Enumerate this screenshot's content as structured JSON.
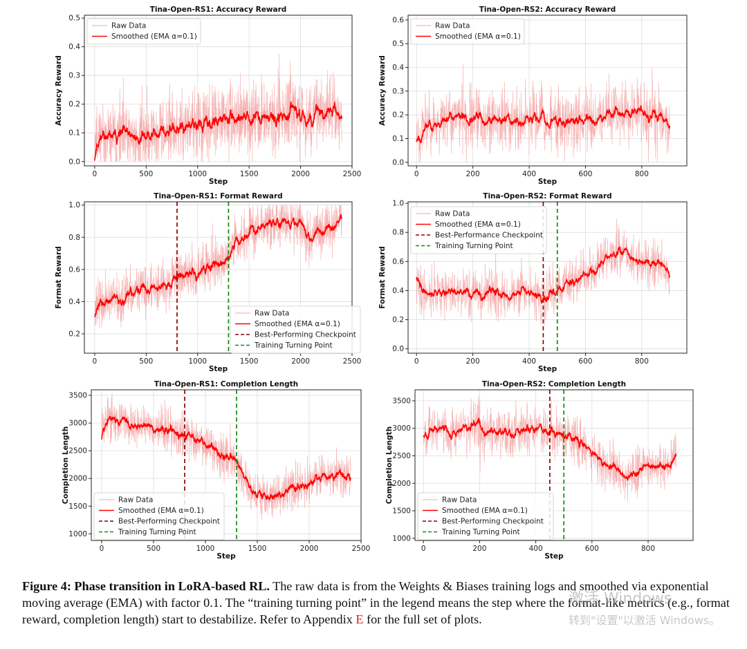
{
  "chart_data": [
    {
      "id": "rs1-acc",
      "type": "line",
      "title": "Tina-Open-RS1: Accuracy Reward",
      "xlabel": "Step",
      "ylabel": "Accuracy Reward",
      "xlim": [
        -100,
        2500
      ],
      "ylim": [
        -0.015,
        0.51
      ],
      "xticks": [
        0,
        500,
        1000,
        1500,
        2000,
        2500
      ],
      "yticks": [
        0.0,
        0.1,
        0.2,
        0.3,
        0.4,
        0.5
      ],
      "grid": true,
      "legend_position": "top-left",
      "series": [
        {
          "name": "Raw Data",
          "style": "raw",
          "color": "#f4a5a5",
          "x_max": 2400,
          "trend": [
            [
              0,
              0.08
            ],
            [
              300,
              0.08
            ],
            [
              800,
              0.11
            ],
            [
              1500,
              0.15
            ],
            [
              2400,
              0.17
            ]
          ],
          "noise": 0.09,
          "clip": [
            0.0,
            0.5
          ],
          "seed": 11
        },
        {
          "name": "Smoothed (EMA α=0.1)",
          "style": "smooth",
          "color": "#ff0000"
        }
      ],
      "vlines": []
    },
    {
      "id": "rs2-acc",
      "type": "line",
      "title": "Tina-Open-RS2: Accuracy Reward",
      "xlabel": "Step",
      "ylabel": "Accuracy Reward",
      "xlim": [
        -30,
        960
      ],
      "ylim": [
        -0.015,
        0.62
      ],
      "xticks": [
        0,
        200,
        400,
        600,
        800
      ],
      "yticks": [
        0.0,
        0.1,
        0.2,
        0.3,
        0.4,
        0.5,
        0.6
      ],
      "grid": true,
      "legend_position": "top-left",
      "series": [
        {
          "name": "Raw Data",
          "style": "raw",
          "color": "#f4a5a5",
          "x_max": 900,
          "trend": [
            [
              0,
              0.13
            ],
            [
              100,
              0.19
            ],
            [
              300,
              0.17
            ],
            [
              600,
              0.18
            ],
            [
              700,
              0.22
            ],
            [
              800,
              0.21
            ],
            [
              900,
              0.14
            ]
          ],
          "noise": 0.1,
          "clip": [
            0.0,
            0.6
          ],
          "seed": 23
        },
        {
          "name": "Smoothed (EMA α=0.1)",
          "style": "smooth",
          "color": "#ff0000"
        }
      ],
      "vlines": []
    },
    {
      "id": "rs1-fmt",
      "type": "line",
      "title": "Tina-Open-RS1: Format Reward",
      "xlabel": "Step",
      "ylabel": "Format Reward",
      "xlim": [
        -100,
        2500
      ],
      "ylim": [
        0.08,
        1.02
      ],
      "xticks": [
        0,
        500,
        1000,
        1500,
        2000,
        2500
      ],
      "yticks": [
        0.2,
        0.4,
        0.6,
        0.8,
        1.0
      ],
      "grid": true,
      "legend_position": "lower-right",
      "series": [
        {
          "name": "Raw Data",
          "style": "raw",
          "color": "#f4a5a5",
          "x_max": 2400,
          "trend": [
            [
              0,
              0.38
            ],
            [
              300,
              0.43
            ],
            [
              800,
              0.55
            ],
            [
              1290,
              0.66
            ],
            [
              1340,
              0.78
            ],
            [
              1600,
              0.87
            ],
            [
              2000,
              0.91
            ],
            [
              2050,
              0.77
            ],
            [
              2400,
              0.91
            ]
          ],
          "noise": 0.11,
          "clip": [
            0.1,
            1.0
          ],
          "seed": 37
        },
        {
          "name": "Smoothed (EMA α=0.1)",
          "style": "smooth",
          "color": "#ff0000"
        },
        {
          "name": "Best-Performing Checkpoint",
          "style": "vline",
          "color": "#8b0000"
        },
        {
          "name": "Training Turning Point",
          "style": "vline",
          "color": "#138a13"
        }
      ],
      "vlines": [
        {
          "x": 800,
          "name": "Best-Performing Checkpoint",
          "color": "#8b0000"
        },
        {
          "x": 1300,
          "name": "Training Turning Point",
          "color": "#138a13"
        }
      ]
    },
    {
      "id": "rs2-fmt",
      "type": "line",
      "title": "Tina-Open-RS2: Format Reward",
      "xlabel": "Step",
      "ylabel": "Format Reward",
      "xlim": [
        -30,
        960
      ],
      "ylim": [
        -0.03,
        1.01
      ],
      "xticks": [
        0,
        200,
        400,
        600,
        800
      ],
      "yticks": [
        0.0,
        0.2,
        0.4,
        0.6,
        0.8,
        1.0
      ],
      "grid": true,
      "legend_position": "top-left",
      "series": [
        {
          "name": "Raw Data",
          "style": "raw",
          "color": "#f4a5a5",
          "x_max": 900,
          "trend": [
            [
              0,
              0.39
            ],
            [
              150,
              0.38
            ],
            [
              400,
              0.37
            ],
            [
              450,
              0.32
            ],
            [
              500,
              0.43
            ],
            [
              600,
              0.5
            ],
            [
              720,
              0.69
            ],
            [
              800,
              0.6
            ],
            [
              880,
              0.56
            ],
            [
              900,
              0.44
            ]
          ],
          "noise": 0.12,
          "clip": [
            0.0,
            1.0
          ],
          "seed": 41
        },
        {
          "name": "Smoothed (EMA α=0.1)",
          "style": "smooth",
          "color": "#ff0000"
        },
        {
          "name": "Best-Performance Checkpoint",
          "style": "vline",
          "color": "#8b0000"
        },
        {
          "name": "Training Turning Point",
          "style": "vline",
          "color": "#138a13"
        }
      ],
      "vlines": [
        {
          "x": 450,
          "name": "Best-Performance Checkpoint",
          "color": "#8b0000"
        },
        {
          "x": 500,
          "name": "Training Turning Point",
          "color": "#138a13"
        }
      ]
    },
    {
      "id": "rs1-len",
      "type": "line",
      "title": "Tina-Open-RS1: Completion Length",
      "xlabel": "Step",
      "ylabel": "Completion Length",
      "xlim": [
        -100,
        2500
      ],
      "ylim": [
        880,
        3600
      ],
      "xticks": [
        0,
        500,
        1000,
        1500,
        2000,
        2500
      ],
      "yticks": [
        1000,
        1500,
        2000,
        2500,
        3000,
        3500
      ],
      "grid": true,
      "legend_position": "lower-left",
      "series": [
        {
          "name": "Raw Data",
          "style": "raw",
          "color": "#f4a5a5",
          "x_max": 2400,
          "trend": [
            [
              0,
              3100
            ],
            [
              400,
              2950
            ],
            [
              900,
              2700
            ],
            [
              1300,
              2300
            ],
            [
              1450,
              1750
            ],
            [
              1600,
              1650
            ],
            [
              1900,
              1850
            ],
            [
              2050,
              2050
            ],
            [
              2400,
              2050
            ]
          ],
          "noise": 280,
          "clip": [
            900,
            3600
          ],
          "seed": 53
        },
        {
          "name": "Smoothed (EMA α=0.1)",
          "style": "smooth",
          "color": "#ff0000"
        },
        {
          "name": "Best-Performing Checkpoint",
          "style": "vline",
          "color": "#8b0000"
        },
        {
          "name": "Training Turning Point",
          "style": "vline",
          "color": "#138a13"
        }
      ],
      "vlines": [
        {
          "x": 800,
          "name": "Best-Performing Checkpoint",
          "color": "#8b0000"
        },
        {
          "x": 1300,
          "name": "Training Turning Point",
          "color": "#138a13"
        }
      ]
    },
    {
      "id": "rs2-len",
      "type": "line",
      "title": "Tina-Open-RS2: Completion Length",
      "xlabel": "Step",
      "ylabel": "Completion Length",
      "xlim": [
        -30,
        960
      ],
      "ylim": [
        960,
        3700
      ],
      "xticks": [
        0,
        200,
        400,
        600,
        800
      ],
      "yticks": [
        1000,
        1500,
        2000,
        2500,
        3000,
        3500
      ],
      "grid": true,
      "legend_position": "lower-left",
      "series": [
        {
          "name": "Raw Data",
          "style": "raw",
          "color": "#f4a5a5",
          "x_max": 900,
          "trend": [
            [
              0,
              2950
            ],
            [
              200,
              3000
            ],
            [
              450,
              2950
            ],
            [
              520,
              2800
            ],
            [
              600,
              2550
            ],
            [
              720,
              2050
            ],
            [
              800,
              2300
            ],
            [
              880,
              2300
            ],
            [
              900,
              2600
            ]
          ],
          "noise": 320,
          "clip": [
            1000,
            3700
          ],
          "seed": 67
        },
        {
          "name": "Smoothed (EMA α=0.1)",
          "style": "smooth",
          "color": "#ff0000"
        },
        {
          "name": "Best-Performing Checkpoint",
          "style": "vline",
          "color": "#8b0000"
        },
        {
          "name": "Training Turning Point",
          "style": "vline",
          "color": "#138a13"
        }
      ],
      "vlines": [
        {
          "x": 450,
          "name": "Best-Performing Checkpoint",
          "color": "#8b0000"
        },
        {
          "x": 500,
          "name": "Training Turning Point",
          "color": "#138a13"
        }
      ]
    }
  ],
  "caption": {
    "lead": "Figure 4: Phase transition in LoRA-based RL.",
    "body": " The raw data is from the Weights & Biases training logs and smoothed via exponential moving average (EMA) with factor 0.1. The “training turning point” in the legend means the step where the format-like metrics (e.g., format reward, completion length) start to destabilize. Refer to Appendix ",
    "appendix_ref": "E",
    "tail": " for the full set of plots."
  },
  "watermark": {
    "line1": "激活 Windows",
    "line2": "转到\"设置\"以激活 Windows。"
  }
}
